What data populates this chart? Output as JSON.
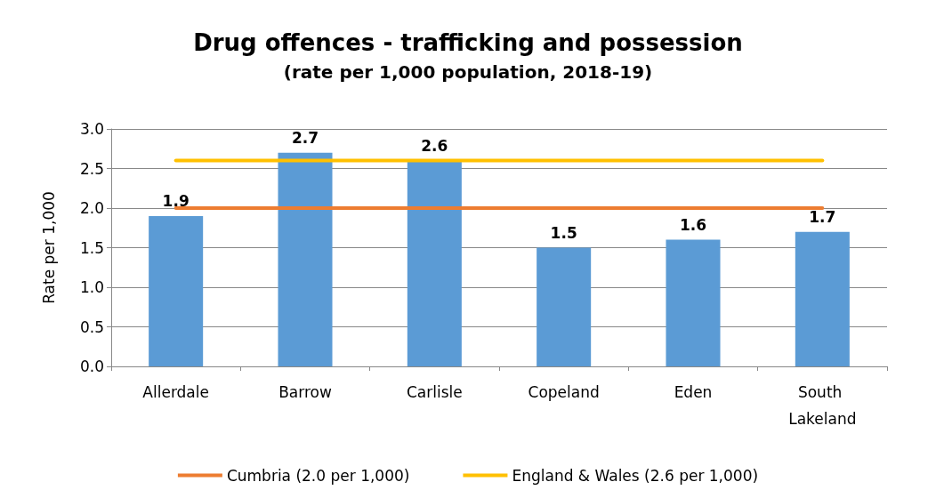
{
  "chart_data": {
    "type": "bar",
    "title": "Drug offences - trafficking and possession",
    "subtitle": "(rate per 1,000 population, 2018-19)",
    "ylabel": "Rate per 1,000",
    "categories": [
      "Allerdale",
      "Barrow",
      "Carlisle",
      "Copeland",
      "Eden",
      "South Lakeland"
    ],
    "series": [
      {
        "color": "#5b9bd5",
        "values": [
          1.9,
          2.7,
          2.6,
          1.5,
          1.6,
          1.7
        ],
        "value_labels": [
          "1.9",
          "2.7",
          "2.6",
          "1.5",
          "1.6",
          "1.7"
        ]
      },
      {
        "type": "line",
        "name": "Cumbria (2.0 per 1,000)",
        "color": "#ed7d31",
        "values": [
          2.0,
          2.0,
          2.0,
          2.0,
          2.0,
          2.0
        ]
      },
      {
        "type": "line",
        "name": "England & Wales (2.6 per 1,000)",
        "color": "#ffc000",
        "values": [
          2.6,
          2.6,
          2.6,
          2.6,
          2.6,
          2.6
        ]
      }
    ],
    "ylim": [
      0,
      3
    ],
    "yticks": [
      {
        "value": 0,
        "label": "0.0"
      },
      0.5,
      {
        "value": 1,
        "label": "1.0"
      },
      1.5,
      {
        "value": 2,
        "label": "2.0"
      },
      2.5,
      {
        "value": 3,
        "label": "3.0"
      }
    ],
    "grid": "y",
    "legend": "bottom",
    "marker": "none"
  }
}
